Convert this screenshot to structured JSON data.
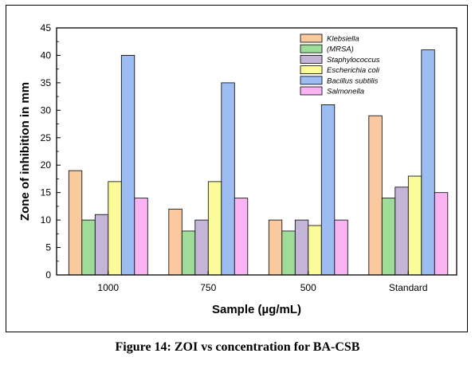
{
  "caption": "Figure 14: ZOI vs concentration for BA-CSB",
  "chart_data": {
    "type": "bar",
    "title": "",
    "xlabel": "Sample (µg/mL)",
    "ylabel": "Zone of inhibition in mm",
    "ylim": [
      0,
      45
    ],
    "yticks": [
      0,
      5,
      10,
      15,
      20,
      25,
      30,
      35,
      40,
      45
    ],
    "grid": false,
    "legend_position": "top-right",
    "categories": [
      "1000",
      "750",
      "500",
      "Standard"
    ],
    "series": [
      {
        "name": "Klebsiella",
        "color": "#fac9a0",
        "values": [
          19,
          12,
          10,
          29
        ]
      },
      {
        "name": "(MRSA)",
        "color": "#9fdc9a",
        "values": [
          10,
          8,
          8,
          14
        ]
      },
      {
        "name": "Staphylococcus",
        "color": "#c4b4d8",
        "values": [
          11,
          10,
          10,
          16
        ]
      },
      {
        "name": "Escherichia coli",
        "color": "#fbfb9a",
        "values": [
          17,
          17,
          9,
          18
        ]
      },
      {
        "name": "Bacillus subtilis",
        "color": "#9dbdf2",
        "values": [
          40,
          35,
          31,
          41
        ]
      },
      {
        "name": "Salmonella",
        "color": "#f9b3f3",
        "values": [
          14,
          14,
          10,
          15
        ]
      }
    ]
  }
}
